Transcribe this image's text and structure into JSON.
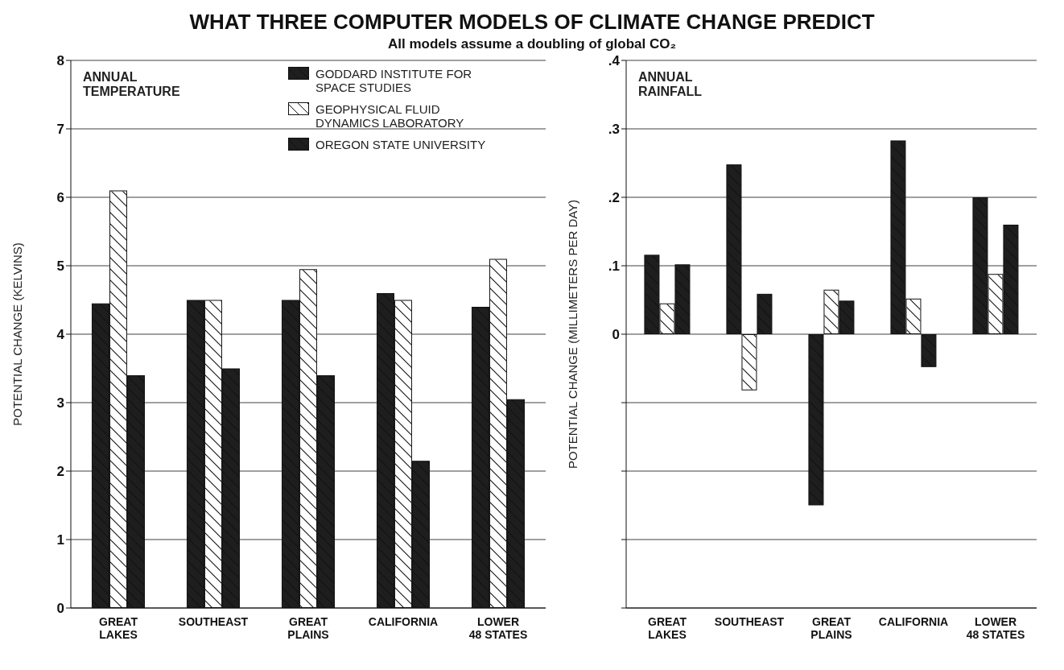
{
  "chart_data": [
    {
      "type": "bar",
      "title": "WHAT THREE COMPUTER MODELS OF CLIMATE CHANGE PREDICT",
      "subtitle": "All models assume a doubling of global CO₂",
      "ylabel": "POTENTIAL CHANGE (KELVINS)",
      "annotations": [
        "ANNUAL TEMPERATURE"
      ],
      "categories": [
        "GREAT LAKES",
        "SOUTHEAST",
        "GREAT PLAINS",
        "CALIFORNIA",
        "LOWER 48 STATES"
      ],
      "series": [
        {
          "name": "GODDARD INSTITUTE FOR SPACE STUDIES",
          "color": "#1e1e1e",
          "values": [
            4.45,
            4.5,
            4.5,
            4.6,
            4.4
          ]
        },
        {
          "name": "GEOPHYSICAL FLUID DYNAMICS LABORATORY",
          "color": "#ffffff",
          "values": [
            6.1,
            4.5,
            4.95,
            4.5,
            5.1
          ]
        },
        {
          "name": "OREGON STATE UNIVERSITY",
          "color": "#1e1e1e",
          "values": [
            3.4,
            3.5,
            3.4,
            2.15,
            3.05
          ]
        }
      ],
      "ylim": [
        0,
        8
      ],
      "yticks": [
        0,
        1,
        2,
        3,
        4,
        5,
        6,
        7,
        8
      ],
      "grid": "y",
      "legend": "top right"
    },
    {
      "type": "bar",
      "ylabel": "POTENTIAL CHANGE (MILLIMETERS PER DAY)",
      "annotations": [
        "ANNUAL RAINFALL"
      ],
      "categories": [
        "GREAT LAKES",
        "SOUTHEAST",
        "GREAT PLAINS",
        "CALIFORNIA",
        "LOWER 48 STATES"
      ],
      "series": [
        {
          "color": "#1e1e1e",
          "values": [
            0.116,
            0.248,
            -0.25,
            0.283,
            0.2
          ]
        },
        {
          "color": "#ffffff",
          "values": [
            0.045,
            -0.082,
            0.065,
            0.052,
            0.088
          ]
        },
        {
          "color": "#1e1e1e",
          "values": [
            0.102,
            0.059,
            0.049,
            -0.048,
            0.16
          ]
        }
      ],
      "ylim": [
        -0.4,
        0.4
      ],
      "yticks": [
        {
          "value": -0.4,
          "label": null
        },
        {
          "value": -0.3,
          "label": null
        },
        {
          "value": -0.2,
          "label": null
        },
        {
          "value": -0.1,
          "label": null
        },
        0,
        {
          "value": 0.1,
          "label": ".1"
        },
        {
          "value": 0.2,
          "label": ".2"
        },
        {
          "value": 0.3,
          "label": ".3"
        },
        {
          "value": 0.4,
          "label": ".4"
        }
      ],
      "grid": "y"
    }
  ]
}
